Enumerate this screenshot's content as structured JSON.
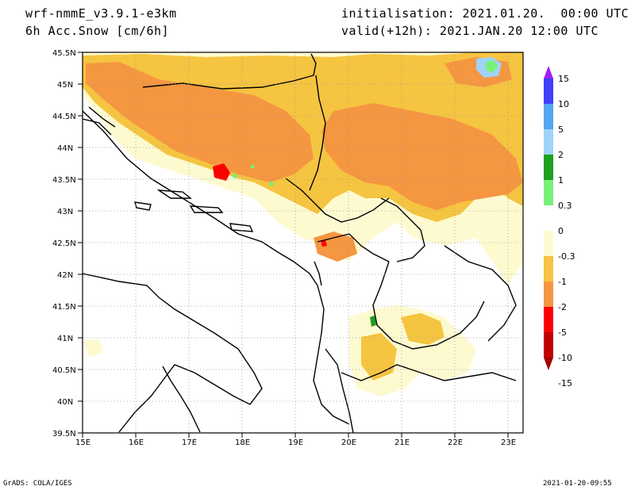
{
  "header": {
    "model": "wrf-nmmE_v3.9.1-e3km",
    "field": "6h Acc.Snow [cm/6h]",
    "init": "initialisation: 2021.01.20.  00:00 UTC",
    "valid": "valid(+12h): 2021.JAN.20 12:00 UTC"
  },
  "footer": {
    "left": "GrADS: COLA/IGES",
    "right": "2021-01-20-09:55"
  },
  "map": {
    "lon_ticks": [
      "15E",
      "16E",
      "17E",
      "18E",
      "19E",
      "20E",
      "21E",
      "22E",
      "23E"
    ],
    "lat_ticks": [
      "45.5N",
      "45N",
      "44.5N",
      "44N",
      "43.5N",
      "43N",
      "42.5N",
      "42N",
      "41.5N",
      "41N",
      "40.5N",
      "40N",
      "39.5N"
    ],
    "lon_range": [
      15,
      23.3
    ],
    "lat_range": [
      39.5,
      45.5
    ],
    "grid": "dotted"
  },
  "colorbar": {
    "labels": [
      "15",
      "10",
      "5",
      "2",
      "1",
      "0.3",
      "0",
      "-0.3",
      "-1",
      "-2",
      "-5",
      "-10",
      "-15"
    ],
    "colors": [
      "#a020f0",
      "#4040ff",
      "#55a5f0",
      "#a0d2fa",
      "#1ea01e",
      "#78f078",
      "#ffffff",
      "#fefad0",
      "#f5c440",
      "#f59640",
      "#fa0000",
      "#c00000",
      "#a00000"
    ]
  },
  "colors": {
    "light": "#fff5c0",
    "mid": "#f5c440",
    "dark": "#f59640",
    "red": "#fa0000",
    "green": "#1ea01e",
    "lightgreen": "#78f078",
    "lightblue": "#a0d2fa"
  }
}
